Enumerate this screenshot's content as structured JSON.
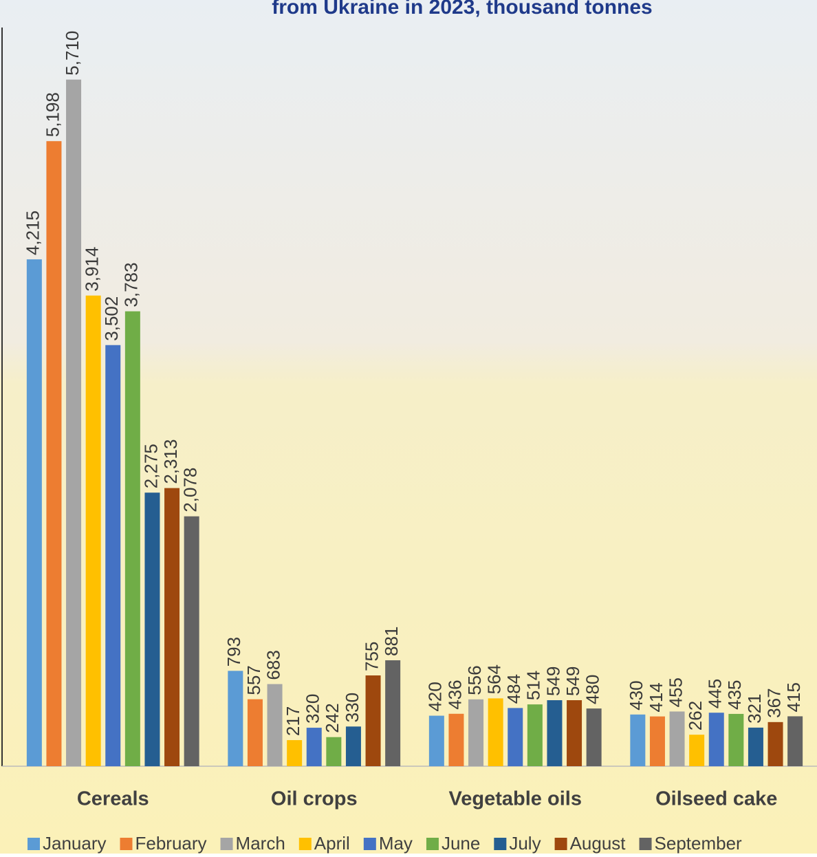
{
  "chart_data": {
    "type": "bar",
    "title": "from Ukraine in 2023, thousand tonnes",
    "categories": [
      "Cereals",
      "Oil crops",
      "Vegetable oils",
      "Oilseed cake"
    ],
    "ylim": [
      0,
      6040
    ],
    "series": [
      {
        "name": "January",
        "color": "#5b9bd5",
        "values": [
          4215,
          793,
          420,
          430
        ],
        "value_labels": [
          "4,215",
          "793",
          "420",
          "430"
        ]
      },
      {
        "name": "February",
        "color": "#ed7d31",
        "values": [
          5198,
          557,
          436,
          414
        ],
        "value_labels": [
          "5,198",
          "557",
          "436",
          "414"
        ]
      },
      {
        "name": "March",
        "color": "#a5a5a5",
        "values": [
          5710,
          683,
          556,
          455
        ],
        "value_labels": [
          "5,710",
          "683",
          "556",
          "455"
        ]
      },
      {
        "name": "April",
        "color": "#ffc000",
        "values": [
          3914,
          217,
          564,
          262
        ],
        "value_labels": [
          "3,914",
          "217",
          "564",
          "262"
        ]
      },
      {
        "name": "May",
        "color": "#4472c4",
        "values": [
          3502,
          320,
          484,
          445
        ],
        "value_labels": [
          "3,502",
          "320",
          "484",
          "445"
        ]
      },
      {
        "name": "June",
        "color": "#70ad47",
        "values": [
          3783,
          242,
          514,
          435
        ],
        "value_labels": [
          "3,783",
          "242",
          "514",
          "435"
        ]
      },
      {
        "name": "July",
        "color": "#255e91",
        "values": [
          2275,
          330,
          549,
          321
        ],
        "value_labels": [
          "2,275",
          "330",
          "549",
          "321"
        ]
      },
      {
        "name": "August",
        "color": "#9e480e",
        "values": [
          2313,
          755,
          549,
          367
        ],
        "value_labels": [
          "2,313",
          "755",
          "549",
          "367"
        ]
      },
      {
        "name": "September",
        "color": "#636363",
        "values": [
          2078,
          881,
          480,
          415
        ],
        "value_labels": [
          "2,078",
          "881",
          "480",
          "415"
        ]
      }
    ]
  }
}
